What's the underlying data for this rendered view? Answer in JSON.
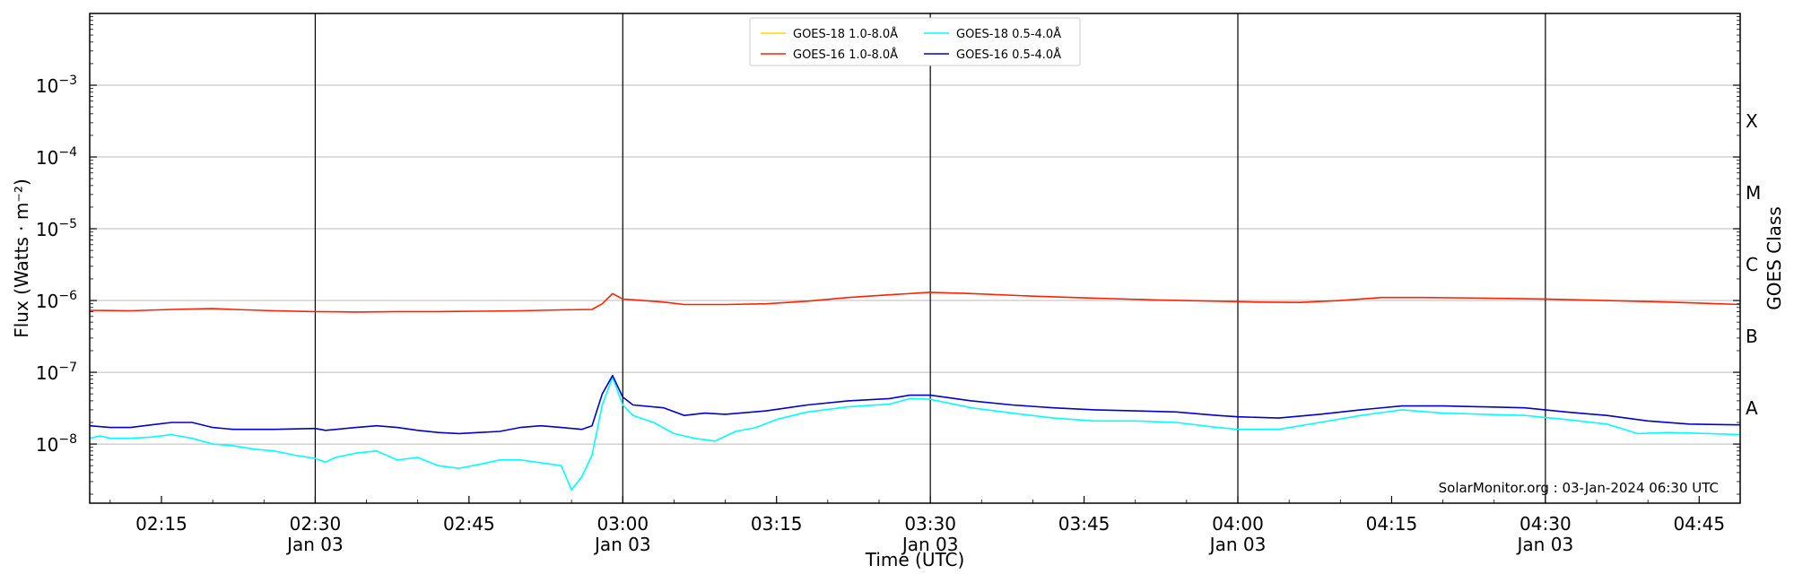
{
  "chart_data": {
    "type": "line",
    "xlabel": "Time (UTC)",
    "ylabel": "Flux (Watts · m⁻²)",
    "ylabel_right": "GOES Class",
    "y_scale": "log",
    "ylim": [
      1.5e-09,
      0.01
    ],
    "xlim": [
      "2024-01-03 02:08",
      "2024-01-03 04:49"
    ],
    "grid": "horizontal at decades; vertical lines every 30 minutes",
    "legend_position": "top-center",
    "y_ticks": [
      {
        "value": 1e-08,
        "base": "10",
        "exp": "−8"
      },
      {
        "value": 1e-07,
        "base": "10",
        "exp": "−7"
      },
      {
        "value": 1e-06,
        "base": "10",
        "exp": "−6"
      },
      {
        "value": 1e-05,
        "base": "10",
        "exp": "−5"
      },
      {
        "value": 0.0001,
        "base": "10",
        "exp": "−4"
      },
      {
        "value": 0.001,
        "base": "10",
        "exp": "−3"
      }
    ],
    "x_ticks": [
      {
        "time": "02:15",
        "label": "02:15",
        "date": ""
      },
      {
        "time": "02:30",
        "label": "02:30",
        "date": "Jan 03"
      },
      {
        "time": "02:45",
        "label": "02:45",
        "date": ""
      },
      {
        "time": "03:00",
        "label": "03:00",
        "date": "Jan 03"
      },
      {
        "time": "03:15",
        "label": "03:15",
        "date": ""
      },
      {
        "time": "03:30",
        "label": "03:30",
        "date": "Jan 03"
      },
      {
        "time": "03:45",
        "label": "03:45",
        "date": ""
      },
      {
        "time": "04:00",
        "label": "04:00",
        "date": "Jan 03"
      },
      {
        "time": "04:15",
        "label": "04:15",
        "date": ""
      },
      {
        "time": "04:30",
        "label": "04:30",
        "date": "Jan 03"
      },
      {
        "time": "04:45",
        "label": "04:45",
        "date": ""
      }
    ],
    "vertical_lines": [
      "02:30",
      "03:00",
      "03:30",
      "04:00",
      "04:30"
    ],
    "goes_classes": [
      {
        "label": "A",
        "value": 3.16e-08
      },
      {
        "label": "B",
        "value": 3.16e-07
      },
      {
        "label": "C",
        "value": 3.16e-06
      },
      {
        "label": "M",
        "value": 3.16e-05
      },
      {
        "label": "X",
        "value": 0.000316
      }
    ],
    "series": [
      {
        "name": "GOES-18 1.0-8.0Å",
        "color": "#FFD700",
        "points": []
      },
      {
        "name": "GOES-16 1.0-8.0Å",
        "color": "#FF2200",
        "points": [
          [
            "02:08",
            7.3e-07
          ],
          [
            "02:12",
            7.2e-07
          ],
          [
            "02:16",
            7.5e-07
          ],
          [
            "02:20",
            7.7e-07
          ],
          [
            "02:22",
            7.5e-07
          ],
          [
            "02:26",
            7.2e-07
          ],
          [
            "02:30",
            7e-07
          ],
          [
            "02:34",
            6.9e-07
          ],
          [
            "02:38",
            7e-07
          ],
          [
            "02:42",
            7e-07
          ],
          [
            "02:46",
            7.1e-07
          ],
          [
            "02:50",
            7.2e-07
          ],
          [
            "02:54",
            7.4e-07
          ],
          [
            "02:57",
            7.5e-07
          ],
          [
            "02:58",
            9e-07
          ],
          [
            "02:59",
            1.25e-06
          ],
          [
            "03:00",
            1.05e-06
          ],
          [
            "03:02",
            1e-06
          ],
          [
            "03:04",
            9.5e-07
          ],
          [
            "03:06",
            8.8e-07
          ],
          [
            "03:10",
            8.8e-07
          ],
          [
            "03:14",
            9e-07
          ],
          [
            "03:18",
            9.8e-07
          ],
          [
            "03:22",
            1.1e-06
          ],
          [
            "03:26",
            1.2e-06
          ],
          [
            "03:30",
            1.3e-06
          ],
          [
            "03:34",
            1.25e-06
          ],
          [
            "03:40",
            1.15e-06
          ],
          [
            "03:46",
            1.08e-06
          ],
          [
            "03:52",
            1.02e-06
          ],
          [
            "03:58",
            9.8e-07
          ],
          [
            "04:02",
            9.5e-07
          ],
          [
            "04:06",
            9.4e-07
          ],
          [
            "04:10",
            1e-06
          ],
          [
            "04:14",
            1.1e-06
          ],
          [
            "04:18",
            1.1e-06
          ],
          [
            "04:24",
            1.08e-06
          ],
          [
            "04:30",
            1.05e-06
          ],
          [
            "04:36",
            1e-06
          ],
          [
            "04:42",
            9.5e-07
          ],
          [
            "04:49",
            8.8e-07
          ]
        ]
      },
      {
        "name": "GOES-18 0.5-4.0Å",
        "color": "#00FFFF",
        "points": [
          [
            "02:08",
            1.2e-08
          ],
          [
            "02:09",
            1.3e-08
          ],
          [
            "02:10",
            1.2e-08
          ],
          [
            "02:12",
            1.2e-08
          ],
          [
            "02:14",
            1.25e-08
          ],
          [
            "02:16",
            1.35e-08
          ],
          [
            "02:18",
            1.2e-08
          ],
          [
            "02:20",
            1e-08
          ],
          [
            "02:22",
            9.5e-09
          ],
          [
            "02:24",
            8.5e-09
          ],
          [
            "02:26",
            8e-09
          ],
          [
            "02:28",
            7e-09
          ],
          [
            "02:30",
            6.3e-09
          ],
          [
            "02:31",
            5.6e-09
          ],
          [
            "02:32",
            6.5e-09
          ],
          [
            "02:34",
            7.5e-09
          ],
          [
            "02:36",
            8e-09
          ],
          [
            "02:38",
            6e-09
          ],
          [
            "02:40",
            6.5e-09
          ],
          [
            "02:42",
            5e-09
          ],
          [
            "02:44",
            4.6e-09
          ],
          [
            "02:46",
            5.2e-09
          ],
          [
            "02:48",
            6e-09
          ],
          [
            "02:50",
            6e-09
          ],
          [
            "02:52",
            5.5e-09
          ],
          [
            "02:54",
            5e-09
          ],
          [
            "02:55",
            2.3e-09
          ],
          [
            "02:56",
            3.5e-09
          ],
          [
            "02:57",
            7e-09
          ],
          [
            "02:58",
            3.5e-08
          ],
          [
            "02:59",
            8.5e-08
          ],
          [
            "03:00",
            3.5e-08
          ],
          [
            "03:01",
            2.5e-08
          ],
          [
            "03:03",
            2e-08
          ],
          [
            "03:05",
            1.4e-08
          ],
          [
            "03:07",
            1.2e-08
          ],
          [
            "03:09",
            1.1e-08
          ],
          [
            "03:11",
            1.5e-08
          ],
          [
            "03:13",
            1.7e-08
          ],
          [
            "03:15",
            2.2e-08
          ],
          [
            "03:18",
            2.8e-08
          ],
          [
            "03:22",
            3.3e-08
          ],
          [
            "03:26",
            3.6e-08
          ],
          [
            "03:28",
            4.3e-08
          ],
          [
            "03:30",
            4.2e-08
          ],
          [
            "03:34",
            3.2e-08
          ],
          [
            "03:38",
            2.7e-08
          ],
          [
            "03:42",
            2.3e-08
          ],
          [
            "03:46",
            2.1e-08
          ],
          [
            "03:50",
            2.1e-08
          ],
          [
            "03:54",
            2e-08
          ],
          [
            "03:58",
            1.7e-08
          ],
          [
            "04:00",
            1.6e-08
          ],
          [
            "04:04",
            1.6e-08
          ],
          [
            "04:08",
            2e-08
          ],
          [
            "04:12",
            2.5e-08
          ],
          [
            "04:16",
            3e-08
          ],
          [
            "04:20",
            2.7e-08
          ],
          [
            "04:24",
            2.6e-08
          ],
          [
            "04:28",
            2.5e-08
          ],
          [
            "04:32",
            2.2e-08
          ],
          [
            "04:36",
            1.9e-08
          ],
          [
            "04:39",
            1.4e-08
          ],
          [
            "04:42",
            1.45e-08
          ],
          [
            "04:46",
            1.4e-08
          ],
          [
            "04:49",
            1.35e-08
          ]
        ]
      },
      {
        "name": "GOES-16 0.5-4.0Å",
        "color": "#0000CC",
        "points": [
          [
            "02:08",
            1.8e-08
          ],
          [
            "02:10",
            1.7e-08
          ],
          [
            "02:12",
            1.7e-08
          ],
          [
            "02:14",
            1.85e-08
          ],
          [
            "02:16",
            2e-08
          ],
          [
            "02:18",
            2e-08
          ],
          [
            "02:20",
            1.7e-08
          ],
          [
            "02:22",
            1.6e-08
          ],
          [
            "02:26",
            1.6e-08
          ],
          [
            "02:30",
            1.65e-08
          ],
          [
            "02:31",
            1.55e-08
          ],
          [
            "02:34",
            1.7e-08
          ],
          [
            "02:36",
            1.8e-08
          ],
          [
            "02:38",
            1.7e-08
          ],
          [
            "02:40",
            1.55e-08
          ],
          [
            "02:42",
            1.45e-08
          ],
          [
            "02:44",
            1.4e-08
          ],
          [
            "02:46",
            1.45e-08
          ],
          [
            "02:48",
            1.5e-08
          ],
          [
            "02:50",
            1.7e-08
          ],
          [
            "02:52",
            1.8e-08
          ],
          [
            "02:54",
            1.7e-08
          ],
          [
            "02:56",
            1.6e-08
          ],
          [
            "02:57",
            1.8e-08
          ],
          [
            "02:58",
            5e-08
          ],
          [
            "02:59",
            9e-08
          ],
          [
            "03:00",
            4.5e-08
          ],
          [
            "03:01",
            3.5e-08
          ],
          [
            "03:04",
            3.2e-08
          ],
          [
            "03:06",
            2.5e-08
          ],
          [
            "03:08",
            2.7e-08
          ],
          [
            "03:10",
            2.6e-08
          ],
          [
            "03:14",
            2.9e-08
          ],
          [
            "03:18",
            3.5e-08
          ],
          [
            "03:22",
            4e-08
          ],
          [
            "03:26",
            4.3e-08
          ],
          [
            "03:28",
            4.8e-08
          ],
          [
            "03:30",
            4.8e-08
          ],
          [
            "03:34",
            4e-08
          ],
          [
            "03:38",
            3.5e-08
          ],
          [
            "03:42",
            3.2e-08
          ],
          [
            "03:46",
            3e-08
          ],
          [
            "03:50",
            2.9e-08
          ],
          [
            "03:54",
            2.8e-08
          ],
          [
            "03:58",
            2.5e-08
          ],
          [
            "04:00",
            2.4e-08
          ],
          [
            "04:04",
            2.3e-08
          ],
          [
            "04:08",
            2.6e-08
          ],
          [
            "04:12",
            3e-08
          ],
          [
            "04:16",
            3.4e-08
          ],
          [
            "04:20",
            3.4e-08
          ],
          [
            "04:24",
            3.3e-08
          ],
          [
            "04:28",
            3.2e-08
          ],
          [
            "04:32",
            2.8e-08
          ],
          [
            "04:36",
            2.5e-08
          ],
          [
            "04:40",
            2.1e-08
          ],
          [
            "04:44",
            1.9e-08
          ],
          [
            "04:49",
            1.85e-08
          ]
        ]
      }
    ],
    "footer": "SolarMonitor.org : 03-Jan-2024 06:30 UTC"
  }
}
